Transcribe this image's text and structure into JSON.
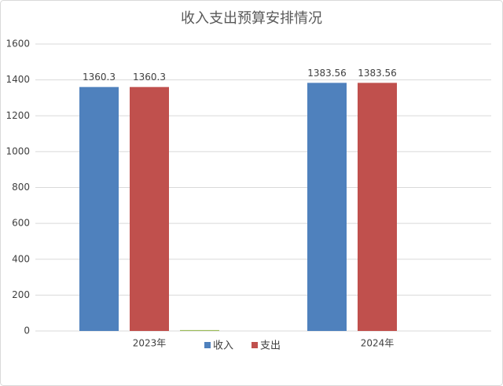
{
  "chart_data": {
    "type": "bar",
    "title": "收入支出预算安排情况",
    "categories": [
      "2023年",
      "2024年"
    ],
    "series": [
      {
        "name": "收入",
        "color": "#4f81bd",
        "values": [
          1360.3,
          1383.56
        ]
      },
      {
        "name": "支出",
        "color": "#c0504d",
        "values": [
          1360.3,
          1383.56
        ]
      },
      {
        "color": "#9bbb59",
        "values": [
          5,
          0
        ]
      }
    ],
    "ylim": [
      0,
      1600
    ],
    "yticks": [
      0,
      200,
      400,
      600,
      800,
      1000,
      1200,
      1400,
      1600
    ],
    "grid": true,
    "legend": "bottom",
    "data_labels": true
  }
}
